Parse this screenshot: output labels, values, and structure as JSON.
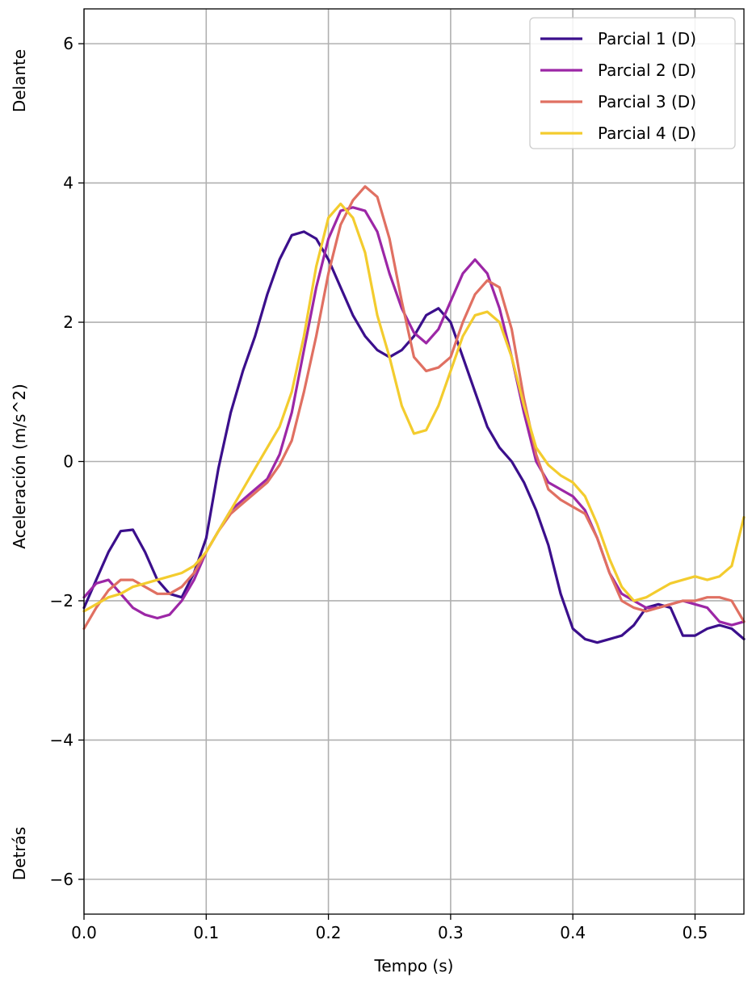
{
  "chart_data": {
    "type": "line",
    "title": "",
    "xlabel": "Tempo (s)",
    "ylabel": "Aceleración (m/s^2)",
    "side_labels": {
      "top": "Delante",
      "bottom": "Detrás"
    },
    "xlim": [
      0.0,
      0.54
    ],
    "ylim": [
      -6.5,
      6.5
    ],
    "xticks": [
      0.0,
      0.1,
      0.2,
      0.3,
      0.4,
      0.5
    ],
    "xtick_labels": [
      "0.0",
      "0.1",
      "0.2",
      "0.3",
      "0.4",
      "0.5"
    ],
    "yticks": [
      -6,
      -4,
      -2,
      0,
      2,
      4,
      6
    ],
    "ytick_labels": [
      "−6",
      "−4",
      "−2",
      "0",
      "2",
      "4",
      "6"
    ],
    "grid": true,
    "legend_position": "top-right",
    "x": [
      0.0,
      0.01,
      0.02,
      0.03,
      0.04,
      0.05,
      0.06,
      0.07,
      0.08,
      0.09,
      0.1,
      0.11,
      0.12,
      0.13,
      0.14,
      0.15,
      0.16,
      0.17,
      0.18,
      0.19,
      0.2,
      0.21,
      0.22,
      0.23,
      0.24,
      0.25,
      0.26,
      0.27,
      0.28,
      0.29,
      0.3,
      0.31,
      0.32,
      0.33,
      0.34,
      0.35,
      0.36,
      0.37,
      0.38,
      0.39,
      0.4,
      0.41,
      0.42,
      0.43,
      0.44,
      0.45,
      0.46,
      0.47,
      0.48,
      0.49,
      0.5,
      0.51,
      0.52,
      0.53,
      0.54
    ],
    "series": [
      {
        "name": "Parcial 1 (D)",
        "color": "#3b0f8c",
        "values": [
          -2.1,
          -1.7,
          -1.3,
          -1.0,
          -0.98,
          -1.3,
          -1.7,
          -1.9,
          -1.95,
          -1.6,
          -1.1,
          -0.1,
          0.7,
          1.3,
          1.8,
          2.4,
          2.9,
          3.25,
          3.3,
          3.2,
          2.9,
          2.5,
          2.1,
          1.8,
          1.6,
          1.5,
          1.6,
          1.8,
          2.1,
          2.2,
          2.0,
          1.5,
          1.0,
          0.5,
          0.2,
          0.0,
          -0.3,
          -0.7,
          -1.2,
          -1.9,
          -2.4,
          -2.55,
          -2.6,
          -2.55,
          -2.5,
          -2.35,
          -2.1,
          -2.05,
          -2.1,
          -2.5,
          -2.5,
          -2.4,
          -2.35,
          -2.4,
          -2.55
        ]
      },
      {
        "name": "Parcial 2 (D)",
        "color": "#9c27a6",
        "values": [
          -1.95,
          -1.75,
          -1.7,
          -1.9,
          -2.1,
          -2.2,
          -2.25,
          -2.2,
          -2.0,
          -1.7,
          -1.3,
          -1.0,
          -0.7,
          -0.55,
          -0.4,
          -0.25,
          0.1,
          0.7,
          1.6,
          2.5,
          3.2,
          3.6,
          3.65,
          3.6,
          3.3,
          2.7,
          2.2,
          1.85,
          1.7,
          1.9,
          2.3,
          2.7,
          2.9,
          2.7,
          2.2,
          1.5,
          0.7,
          0.0,
          -0.3,
          -0.4,
          -0.5,
          -0.7,
          -1.1,
          -1.6,
          -1.9,
          -2.0,
          -2.1,
          -2.1,
          -2.05,
          -2.0,
          -2.05,
          -2.1,
          -2.3,
          -2.35,
          -2.3
        ]
      },
      {
        "name": "Parcial 3 (D)",
        "color": "#e07062",
        "values": [
          -2.4,
          -2.1,
          -1.85,
          -1.7,
          -1.7,
          -1.8,
          -1.9,
          -1.9,
          -1.8,
          -1.6,
          -1.3,
          -1.0,
          -0.75,
          -0.6,
          -0.45,
          -0.3,
          -0.05,
          0.3,
          1.0,
          1.8,
          2.7,
          3.4,
          3.75,
          3.95,
          3.8,
          3.2,
          2.3,
          1.5,
          1.3,
          1.35,
          1.5,
          2.0,
          2.4,
          2.6,
          2.5,
          1.9,
          0.9,
          0.1,
          -0.4,
          -0.55,
          -0.65,
          -0.75,
          -1.1,
          -1.6,
          -2.0,
          -2.1,
          -2.15,
          -2.1,
          -2.05,
          -2.0,
          -2.0,
          -1.95,
          -1.95,
          -2.0,
          -2.3
        ]
      },
      {
        "name": "Parcial 4 (D)",
        "color": "#f3cc2e",
        "values": [
          -2.15,
          -2.05,
          -1.95,
          -1.9,
          -1.8,
          -1.75,
          -1.7,
          -1.65,
          -1.6,
          -1.5,
          -1.3,
          -1.0,
          -0.7,
          -0.4,
          -0.1,
          0.2,
          0.5,
          1.0,
          1.8,
          2.8,
          3.5,
          3.7,
          3.5,
          3.0,
          2.1,
          1.5,
          0.8,
          0.4,
          0.45,
          0.8,
          1.3,
          1.8,
          2.1,
          2.15,
          2.0,
          1.5,
          0.8,
          0.2,
          -0.05,
          -0.2,
          -0.3,
          -0.5,
          -0.9,
          -1.4,
          -1.8,
          -2.0,
          -1.95,
          -1.85,
          -1.75,
          -1.7,
          -1.65,
          -1.7,
          -1.65,
          -1.5,
          -0.8
        ]
      }
    ]
  }
}
